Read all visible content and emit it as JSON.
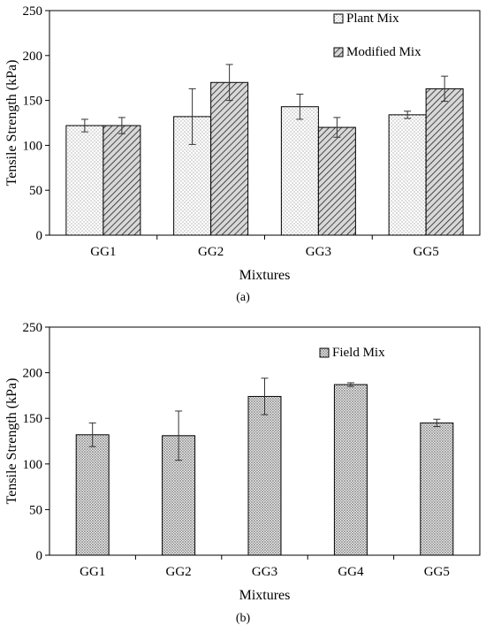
{
  "chart_data": [
    {
      "type": "bar",
      "caption": "(a)",
      "ylabel": "Tensile Strength (kPa)",
      "xlabel": "Mixtures",
      "ylim": [
        0,
        250
      ],
      "yticks": [
        0,
        50,
        100,
        150,
        200,
        250
      ],
      "categories": [
        "GG1",
        "GG2",
        "GG3",
        "GG5"
      ],
      "legend_position": "top-right",
      "series": [
        {
          "name": "Plant Mix",
          "pattern": "dots",
          "values": [
            122,
            132,
            143,
            134
          ],
          "errors": [
            7,
            31,
            14,
            4
          ]
        },
        {
          "name": "Modified Mix",
          "pattern": "hatch",
          "values": [
            122,
            170,
            120,
            163
          ],
          "errors": [
            9,
            20,
            11,
            14
          ]
        }
      ]
    },
    {
      "type": "bar",
      "caption": "(b)",
      "ylabel": "Tensile Strength (kPa)",
      "xlabel": "Mixtures",
      "ylim": [
        0,
        250
      ],
      "yticks": [
        0,
        50,
        100,
        150,
        200,
        250
      ],
      "categories": [
        "GG1",
        "GG2",
        "GG3",
        "GG4",
        "GG5"
      ],
      "legend_position": "top-center",
      "series": [
        {
          "name": "Field Mix",
          "pattern": "crosshatch",
          "values": [
            132,
            131,
            174,
            187,
            145
          ],
          "errors": [
            13,
            27,
            20,
            2,
            4
          ]
        }
      ]
    }
  ]
}
